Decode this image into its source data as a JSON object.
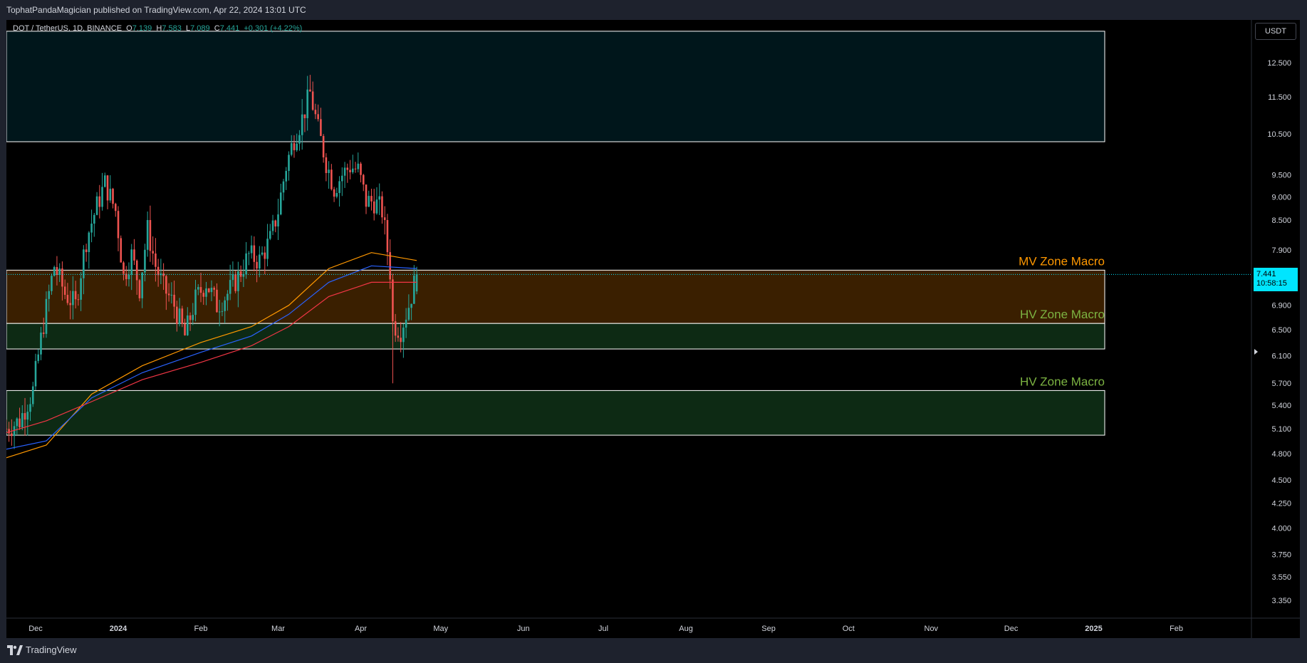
{
  "header": {
    "published_text": "TophatPandaMagician published on TradingView.com, Apr 22, 2024 13:01 UTC"
  },
  "legend": {
    "symbol": "DOT / TetherUS, 1D, BINANCE",
    "o_label": "O",
    "o_value": "7.139",
    "h_label": "H",
    "h_value": "7.583",
    "l_label": "L",
    "l_value": "7.089",
    "c_label": "C",
    "c_value": "7.441",
    "change": "+0.301 (+4.22%)"
  },
  "currency_button": "USDT",
  "price_tag": {
    "price": "7.441",
    "countdown": "10:58:15"
  },
  "footer": {
    "brand": "TradingView"
  },
  "colors": {
    "up": "#26a69a",
    "down": "#ef5350",
    "mv_zone": "#ff9800",
    "hv_zone": "#7cb342",
    "price_tag": "#00e5ff"
  },
  "chart_data": {
    "type": "candlestick",
    "y_scale": "log",
    "ylim": [
      3.2,
      13.5
    ],
    "price_axis_ticks": [
      "12.500",
      "11.500",
      "10.500",
      "9.500",
      "9.000",
      "8.500",
      "7.900",
      "6.900",
      "6.500",
      "6.100",
      "5.700",
      "5.400",
      "5.100",
      "4.800",
      "4.500",
      "4.250",
      "4.000",
      "3.750",
      "3.550",
      "3.350"
    ],
    "time_axis_ticks": [
      {
        "label": "Dec",
        "date": "2023-12-01"
      },
      {
        "label": "2024",
        "date": "2024-01-01"
      },
      {
        "label": "Feb",
        "date": "2024-02-01"
      },
      {
        "label": "Mar",
        "date": "2024-03-01"
      },
      {
        "label": "Apr",
        "date": "2024-04-01"
      },
      {
        "label": "May",
        "date": "2024-05-01"
      },
      {
        "label": "Jun",
        "date": "2024-06-01"
      },
      {
        "label": "Jul",
        "date": "2024-07-01"
      },
      {
        "label": "Aug",
        "date": "2024-08-01"
      },
      {
        "label": "Sep",
        "date": "2024-09-01"
      },
      {
        "label": "Oct",
        "date": "2024-10-01"
      },
      {
        "label": "Nov",
        "date": "2024-11-01"
      },
      {
        "label": "Dec",
        "date": "2024-12-01"
      },
      {
        "label": "2025",
        "date": "2025-01-01"
      },
      {
        "label": "Feb",
        "date": "2025-02-01"
      }
    ],
    "close_path": [
      [
        "2023-11-20",
        5.1
      ],
      [
        "2023-11-25",
        5.2
      ],
      [
        "2023-11-30",
        5.6
      ],
      [
        "2023-12-04",
        6.6
      ],
      [
        "2023-12-08",
        7.6
      ],
      [
        "2023-12-12",
        7.1
      ],
      [
        "2023-12-16",
        6.9
      ],
      [
        "2023-12-20",
        8.1
      ],
      [
        "2023-12-24",
        8.8
      ],
      [
        "2023-12-27",
        9.3
      ],
      [
        "2023-12-31",
        8.7
      ],
      [
        "2024-01-03",
        7.4
      ],
      [
        "2024-01-06",
        7.8
      ],
      [
        "2024-01-09",
        7.2
      ],
      [
        "2024-01-12",
        8.3
      ],
      [
        "2024-01-15",
        7.6
      ],
      [
        "2024-01-18",
        7.2
      ],
      [
        "2024-01-22",
        6.9
      ],
      [
        "2024-01-26",
        6.4
      ],
      [
        "2024-01-30",
        7.0
      ],
      [
        "2024-02-03",
        7.3
      ],
      [
        "2024-02-07",
        6.9
      ],
      [
        "2024-02-11",
        7.1
      ],
      [
        "2024-02-15",
        7.4
      ],
      [
        "2024-02-19",
        7.8
      ],
      [
        "2024-02-23",
        7.7
      ],
      [
        "2024-02-27",
        8.1
      ],
      [
        "2024-03-01",
        8.7
      ],
      [
        "2024-03-04",
        9.7
      ],
      [
        "2024-03-07",
        10.4
      ],
      [
        "2024-03-10",
        10.9
      ],
      [
        "2024-03-13",
        11.6
      ],
      [
        "2024-03-16",
        10.6
      ],
      [
        "2024-03-19",
        9.8
      ],
      [
        "2024-03-22",
        9.2
      ],
      [
        "2024-03-25",
        9.5
      ],
      [
        "2024-03-28",
        9.7
      ],
      [
        "2024-03-31",
        9.6
      ],
      [
        "2024-04-03",
        8.9
      ],
      [
        "2024-04-06",
        8.9
      ],
      [
        "2024-04-09",
        8.7
      ],
      [
        "2024-04-12",
        7.5
      ],
      [
        "2024-04-13",
        6.6
      ],
      [
        "2024-04-16",
        6.5
      ],
      [
        "2024-04-19",
        6.9
      ],
      [
        "2024-04-22",
        7.44
      ]
    ],
    "moving_averages": [
      {
        "color": "#ff9800",
        "points": [
          [
            "2023-11-20",
            4.75
          ],
          [
            "2023-12-05",
            4.9
          ],
          [
            "2023-12-22",
            5.55
          ],
          [
            "2024-01-10",
            5.95
          ],
          [
            "2024-02-01",
            6.3
          ],
          [
            "2024-02-20",
            6.55
          ],
          [
            "2024-03-05",
            6.9
          ],
          [
            "2024-03-20",
            7.55
          ],
          [
            "2024-04-05",
            7.85
          ],
          [
            "2024-04-22",
            7.7
          ]
        ]
      },
      {
        "color": "#2962ff",
        "points": [
          [
            "2023-11-20",
            4.85
          ],
          [
            "2023-12-05",
            4.95
          ],
          [
            "2023-12-22",
            5.5
          ],
          [
            "2024-01-10",
            5.85
          ],
          [
            "2024-02-01",
            6.15
          ],
          [
            "2024-02-20",
            6.4
          ],
          [
            "2024-03-05",
            6.75
          ],
          [
            "2024-03-20",
            7.3
          ],
          [
            "2024-04-05",
            7.6
          ],
          [
            "2024-04-22",
            7.55
          ]
        ]
      },
      {
        "color": "#f23645",
        "points": [
          [
            "2023-11-20",
            5.05
          ],
          [
            "2023-12-05",
            5.2
          ],
          [
            "2023-12-22",
            5.45
          ],
          [
            "2024-01-10",
            5.75
          ],
          [
            "2024-02-01",
            6.0
          ],
          [
            "2024-02-20",
            6.25
          ],
          [
            "2024-03-05",
            6.55
          ],
          [
            "2024-03-20",
            7.05
          ],
          [
            "2024-04-05",
            7.3
          ],
          [
            "2024-04-22",
            7.3
          ]
        ]
      }
    ],
    "zones": [
      {
        "name": "top",
        "low": 10.3,
        "high": 13.5
      },
      {
        "name": "mv",
        "label": "MV Zone Macro",
        "low": 6.6,
        "high": 7.52
      },
      {
        "name": "hv1",
        "label": "HV Zone Macro",
        "low": 6.2,
        "high": 6.6
      },
      {
        "name": "hv2",
        "label": "HV Zone Macro",
        "low": 5.02,
        "high": 5.6
      }
    ],
    "last_price": 7.441
  }
}
